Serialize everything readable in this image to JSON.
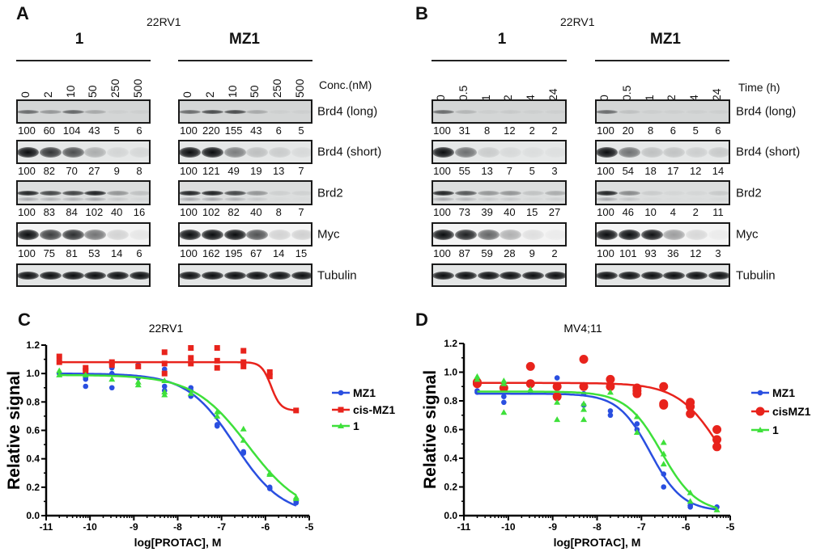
{
  "panel_A": {
    "label": "A",
    "cell_line": "22RV1",
    "axis_label": "Conc.(nM)",
    "row_labels": [
      "Brd4 (long)",
      "Brd4 (short)",
      "Brd2",
      "Myc",
      "Tubulin"
    ],
    "groups": [
      {
        "title": "1",
        "lanes": [
          "0",
          "2",
          "10",
          "50",
          "250",
          "500"
        ],
        "values": [
          [
            100,
            60,
            104,
            43,
            5,
            6
          ],
          [
            100,
            82,
            70,
            27,
            9,
            8
          ],
          [
            100,
            83,
            84,
            102,
            40,
            16
          ],
          [
            100,
            75,
            81,
            53,
            14,
            6
          ]
        ]
      },
      {
        "title": "MZ1",
        "lanes": [
          "0",
          "2",
          "10",
          "50",
          "250",
          "500"
        ],
        "values": [
          [
            100,
            220,
            155,
            43,
            6,
            5
          ],
          [
            100,
            121,
            49,
            19,
            13,
            7
          ],
          [
            100,
            102,
            82,
            40,
            8,
            7
          ],
          [
            100,
            162,
            195,
            67,
            14,
            15
          ]
        ]
      }
    ]
  },
  "panel_B": {
    "label": "B",
    "cell_line": "22RV1",
    "axis_label": "Time (h)",
    "row_labels": [
      "Brd4 (long)",
      "Brd4 (short)",
      "Brd2",
      "Myc",
      "Tubulin"
    ],
    "groups": [
      {
        "title": "1",
        "lanes": [
          "0",
          "0.5",
          "1",
          "2",
          "4",
          "24"
        ],
        "values": [
          [
            100,
            31,
            8,
            12,
            2,
            2
          ],
          [
            100,
            55,
            13,
            7,
            5,
            3
          ],
          [
            100,
            73,
            39,
            40,
            15,
            27
          ],
          [
            100,
            87,
            59,
            28,
            9,
            2
          ]
        ]
      },
      {
        "title": "MZ1",
        "lanes": [
          "0",
          "0.5",
          "1",
          "2",
          "4",
          "24"
        ],
        "values": [
          [
            100,
            20,
            8,
            6,
            5,
            6
          ],
          [
            100,
            54,
            18,
            17,
            12,
            14
          ],
          [
            100,
            46,
            10,
            4,
            2,
            11
          ],
          [
            100,
            101,
            93,
            36,
            12,
            3
          ]
        ]
      }
    ]
  },
  "chart_data": [
    {
      "panel_label": "C",
      "type": "scatter",
      "title": "22RV1",
      "xlabel": "log[PROTAC], M",
      "ylabel": "Relative signal",
      "xlim": [
        -11,
        -5
      ],
      "ylim": [
        0,
        1.2
      ],
      "xticks": [
        -11,
        -10,
        -9,
        -8,
        -7,
        -6,
        -5
      ],
      "yticks": [
        "0.0",
        "0.2",
        "0.4",
        "0.6",
        "0.8",
        "1.0",
        "1.2"
      ],
      "legend_position": "right",
      "series": [
        {
          "name": "MZ1",
          "color": "#2a4fe0",
          "marker": "circle",
          "points": [
            [
              -10.7,
              1.11
            ],
            [
              -10.7,
              1.0
            ],
            [
              -10.1,
              0.97
            ],
            [
              -10.1,
              0.91
            ],
            [
              -10.1,
              0.96
            ],
            [
              -9.5,
              1.04
            ],
            [
              -9.5,
              0.9
            ],
            [
              -9.5,
              1.0
            ],
            [
              -8.9,
              1.06
            ],
            [
              -8.9,
              0.97
            ],
            [
              -8.3,
              1.03
            ],
            [
              -8.3,
              0.91
            ],
            [
              -8.3,
              0.88
            ],
            [
              -7.7,
              0.9
            ],
            [
              -7.7,
              0.84
            ],
            [
              -7.7,
              0.88
            ],
            [
              -7.1,
              0.64
            ],
            [
              -7.1,
              0.63
            ],
            [
              -6.5,
              0.45
            ],
            [
              -6.5,
              0.44
            ],
            [
              -5.9,
              0.2
            ],
            [
              -5.9,
              0.19
            ],
            [
              -5.3,
              0.1
            ],
            [
              -5.3,
              0.09
            ]
          ],
          "fit": {
            "top": 1.0,
            "bottom": 0.0,
            "logEC50": -6.7,
            "hill": 0.8
          }
        },
        {
          "name": "cis-MZ1",
          "color": "#e8231c",
          "marker": "square",
          "points": [
            [
              -10.7,
              1.12
            ],
            [
              -10.7,
              1.08
            ],
            [
              -10.1,
              1.04
            ],
            [
              -10.1,
              1.02
            ],
            [
              -9.5,
              1.08
            ],
            [
              -9.5,
              1.06
            ],
            [
              -8.9,
              1.05
            ],
            [
              -8.3,
              1.15
            ],
            [
              -8.3,
              1.07
            ],
            [
              -8.3,
              1.0
            ],
            [
              -7.7,
              1.18
            ],
            [
              -7.7,
              1.11
            ],
            [
              -7.7,
              1.07
            ],
            [
              -7.1,
              1.18
            ],
            [
              -7.1,
              1.09
            ],
            [
              -7.1,
              1.04
            ],
            [
              -6.5,
              1.16
            ],
            [
              -6.5,
              1.08
            ],
            [
              -6.5,
              1.05
            ],
            [
              -5.9,
              1.01
            ],
            [
              -5.9,
              0.98
            ],
            [
              -5.3,
              0.74
            ]
          ],
          "fit": {
            "top": 1.08,
            "bottom": 0.74,
            "logEC50": -5.87,
            "hill": 4
          }
        },
        {
          "name": "1",
          "color": "#3ee03a",
          "marker": "triangle",
          "points": [
            [
              -10.7,
              1.02
            ],
            [
              -10.7,
              0.99
            ],
            [
              -10.1,
              0.99
            ],
            [
              -9.5,
              0.96
            ],
            [
              -8.9,
              0.94
            ],
            [
              -8.9,
              0.92
            ],
            [
              -8.3,
              0.95
            ],
            [
              -8.3,
              0.85
            ],
            [
              -8.3,
              0.87
            ],
            [
              -7.7,
              0.86
            ],
            [
              -7.1,
              0.73
            ],
            [
              -7.1,
              0.7
            ],
            [
              -6.5,
              0.61
            ],
            [
              -6.5,
              0.53
            ],
            [
              -5.9,
              0.3
            ],
            [
              -5.9,
              0.29
            ],
            [
              -5.3,
              0.13
            ],
            [
              -5.3,
              0.12
            ]
          ],
          "fit": {
            "top": 0.99,
            "bottom": 0.0,
            "logEC50": -6.4,
            "hill": 0.7
          }
        }
      ]
    },
    {
      "panel_label": "D",
      "type": "scatter",
      "title": "MV4;11",
      "xlabel": "log[PROTAC], M",
      "ylabel": "Relative signal",
      "xlim": [
        -11,
        -5
      ],
      "ylim": [
        0,
        1.2
      ],
      "xticks": [
        -11,
        -10,
        -9,
        -8,
        -7,
        -6,
        -5
      ],
      "yticks": [
        "0.0",
        "0.2",
        "0.4",
        "0.6",
        "0.8",
        "1.0",
        "1.2"
      ],
      "legend_position": "right",
      "series": [
        {
          "name": "MZ1",
          "color": "#2a4fe0",
          "marker": "circle",
          "points": [
            [
              -10.7,
              0.87
            ],
            [
              -10.7,
              0.86
            ],
            [
              -10.1,
              0.83
            ],
            [
              -10.1,
              0.79
            ],
            [
              -9.5,
              0.86
            ],
            [
              -8.9,
              0.96
            ],
            [
              -8.9,
              0.9
            ],
            [
              -8.9,
              0.84
            ],
            [
              -8.3,
              0.85
            ],
            [
              -8.3,
              0.77
            ],
            [
              -7.7,
              0.73
            ],
            [
              -7.7,
              0.7
            ],
            [
              -7.1,
              0.64
            ],
            [
              -7.1,
              0.6
            ],
            [
              -6.5,
              0.29
            ],
            [
              -6.5,
              0.2
            ],
            [
              -5.9,
              0.07
            ],
            [
              -5.9,
              0.06
            ],
            [
              -5.3,
              0.06
            ]
          ],
          "fit": {
            "top": 0.85,
            "bottom": 0.03,
            "logEC50": -6.8,
            "hill": 1.2
          }
        },
        {
          "name": "cisMZ1",
          "color": "#e8231c",
          "marker": "big-circle",
          "points": [
            [
              -10.7,
              0.93
            ],
            [
              -10.7,
              0.92
            ],
            [
              -10.1,
              0.89
            ],
            [
              -9.5,
              1.04
            ],
            [
              -9.5,
              0.92
            ],
            [
              -8.9,
              0.9
            ],
            [
              -8.9,
              0.83
            ],
            [
              -8.3,
              1.09
            ],
            [
              -8.3,
              0.9
            ],
            [
              -7.7,
              0.95
            ],
            [
              -7.7,
              0.9
            ],
            [
              -7.1,
              0.89
            ],
            [
              -7.1,
              0.87
            ],
            [
              -7.1,
              0.85
            ],
            [
              -6.5,
              0.9
            ],
            [
              -6.5,
              0.78
            ],
            [
              -6.5,
              0.77
            ],
            [
              -5.9,
              0.79
            ],
            [
              -5.9,
              0.76
            ],
            [
              -5.9,
              0.71
            ],
            [
              -5.3,
              0.6
            ],
            [
              -5.3,
              0.53
            ],
            [
              -5.3,
              0.48
            ]
          ],
          "fit": {
            "top": 0.925,
            "bottom": 0.0,
            "logEC50": -5.2,
            "hill": 0.9
          }
        },
        {
          "name": "1",
          "color": "#3ee03a",
          "marker": "triangle",
          "points": [
            [
              -10.7,
              0.97
            ],
            [
              -10.7,
              0.95
            ],
            [
              -10.1,
              0.94
            ],
            [
              -10.1,
              0.92
            ],
            [
              -10.1,
              0.72
            ],
            [
              -9.5,
              0.88
            ],
            [
              -8.9,
              0.79
            ],
            [
              -8.9,
              0.67
            ],
            [
              -8.3,
              0.78
            ],
            [
              -8.3,
              0.74
            ],
            [
              -8.3,
              0.67
            ],
            [
              -7.7,
              0.86
            ],
            [
              -7.1,
              0.69
            ],
            [
              -7.1,
              0.58
            ],
            [
              -6.5,
              0.51
            ],
            [
              -6.5,
              0.43
            ],
            [
              -6.5,
              0.36
            ],
            [
              -5.9,
              0.16
            ],
            [
              -5.9,
              0.1
            ],
            [
              -5.3,
              0.04
            ]
          ],
          "fit": {
            "top": 0.865,
            "bottom": 0.02,
            "logEC50": -6.55,
            "hill": 1.1
          }
        }
      ]
    }
  ]
}
